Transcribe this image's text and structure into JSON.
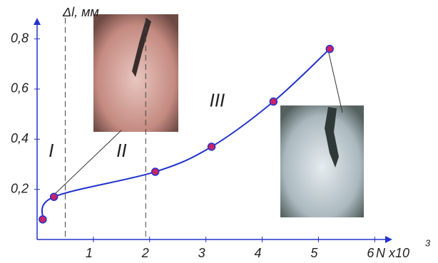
{
  "chart_data": {
    "type": "line",
    "x_label": "N x10",
    "x_label_exponent": "3",
    "y_label": "Δl, мм",
    "x": [
      0.1,
      0.3,
      2.1,
      3.1,
      4.2,
      5.2
    ],
    "values": [
      0.08,
      0.17,
      0.27,
      0.37,
      0.55,
      0.76
    ],
    "color": "#2233cc",
    "marker_color": "#cc2266",
    "xlim": [
      0,
      6.3
    ],
    "ylim": [
      0,
      0.85
    ],
    "xticks": [
      1,
      2,
      3,
      4,
      5,
      6
    ],
    "yticks": [
      {
        "value": 0.2,
        "label": "0,2"
      },
      {
        "value": 0.4,
        "label": "0,4"
      },
      {
        "value": 0.6,
        "label": "0,6"
      },
      {
        "value": 0.8,
        "label": "0,8"
      }
    ],
    "vlines": [
      0.5,
      1.93
    ],
    "annotations": [
      {
        "text": "I",
        "x": 0.25,
        "y": 0.35
      },
      {
        "text": "II",
        "x": 1.5,
        "y": 0.35
      },
      {
        "text": "III",
        "x": 3.2,
        "y": 0.55
      }
    ]
  }
}
